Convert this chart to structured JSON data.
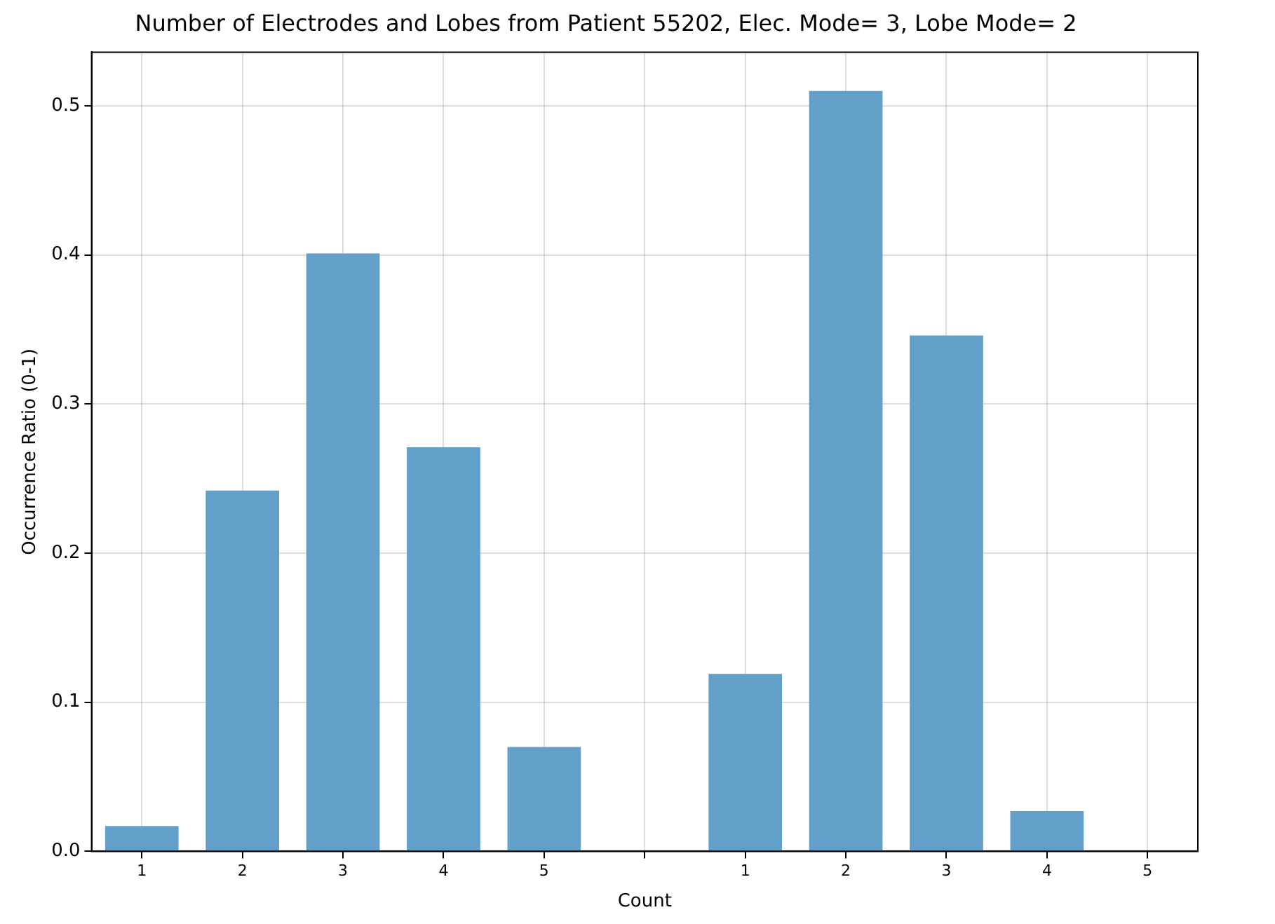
{
  "chart_data": {
    "type": "bar",
    "title": "Number of Electrodes and Lobes from Patient 55202, Elec. Mode= 3, Lobe Mode= 2",
    "xlabel": "Count",
    "ylabel": "Occurrence Ratio (0-1)",
    "categories": [
      "1",
      "2",
      "3",
      "4",
      "5",
      null,
      "1",
      "2",
      "3",
      "4",
      "5"
    ],
    "values": [
      0.017,
      0.242,
      0.401,
      0.271,
      0.07,
      null,
      0.119,
      0.51,
      0.346,
      0.027,
      0
    ],
    "color": "#62a0ca",
    "ylim": [
      0,
      0.536
    ],
    "yticks": [
      {
        "value": 0,
        "label": "0.0"
      },
      0.1,
      0.2,
      0.3,
      0.4,
      {
        "value": 0.5,
        "label": "0.5"
      }
    ],
    "grid": true,
    "legend": false
  }
}
